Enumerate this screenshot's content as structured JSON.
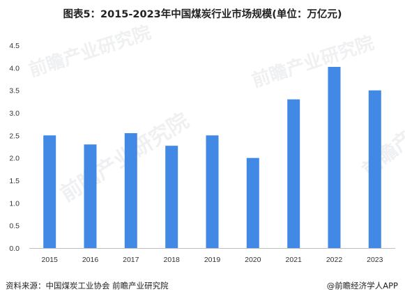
{
  "header": {
    "title": "图表5：2015-2023年中国煤炭行业市场规模(单位：万亿元)"
  },
  "footer": {
    "source": "资料来源：中国煤炭工业协会 前瞻产业研究院",
    "credit": "@前瞻经济学人APP"
  },
  "watermark": {
    "text": "前瞻产业研究院"
  },
  "colors": {
    "bar": "#4289e6",
    "axis": "#bfbfbf",
    "text": "#333333"
  },
  "chart_data": {
    "type": "bar",
    "title": "图表5：2015-2023年中国煤炭行业市场规模(单位：万亿元)",
    "categories": [
      "2015",
      "2016",
      "2017",
      "2018",
      "2019",
      "2020",
      "2021",
      "2022",
      "2023"
    ],
    "values": [
      2.5,
      2.3,
      2.55,
      2.27,
      2.5,
      2.0,
      3.3,
      4.02,
      3.5
    ],
    "yticks": [
      "0.0",
      "0.5",
      "1.0",
      "1.5",
      "2.0",
      "2.5",
      "3.0",
      "3.5",
      "4.0",
      "4.5"
    ],
    "ylim": [
      0,
      4.5
    ],
    "grid": false,
    "legend": "none"
  }
}
